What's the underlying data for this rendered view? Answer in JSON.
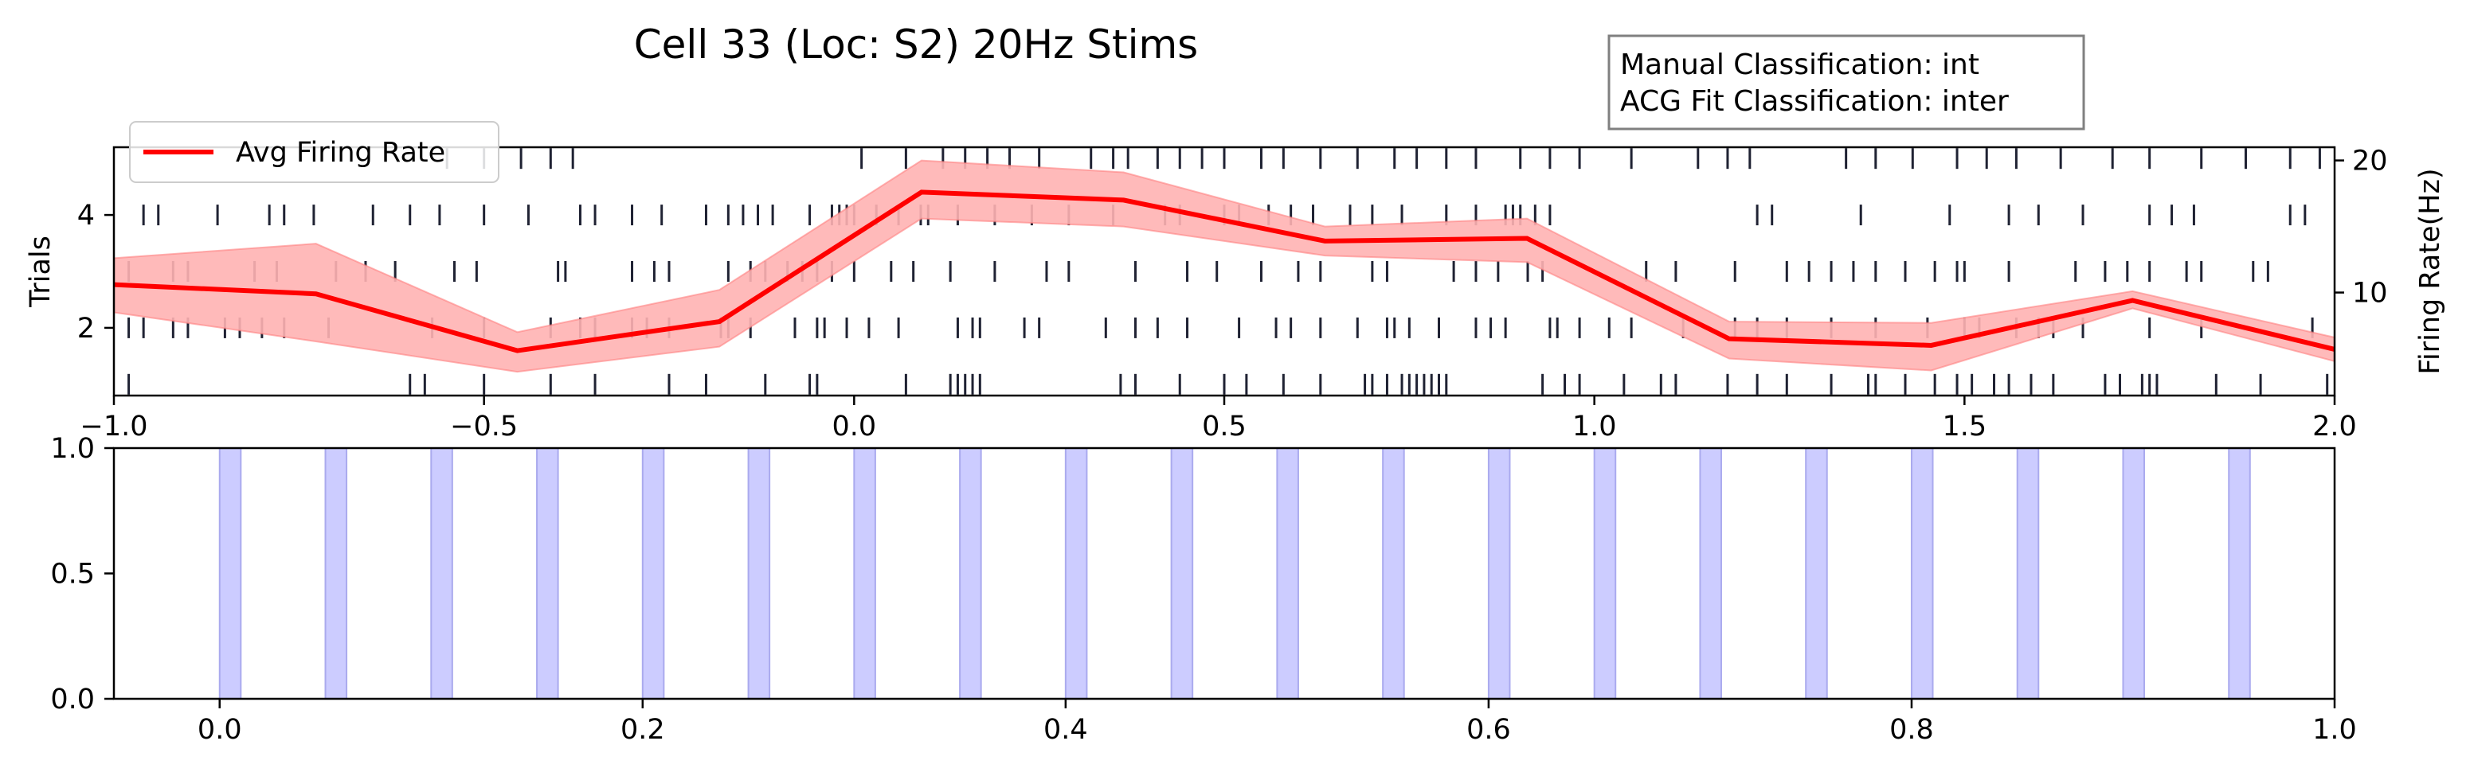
{
  "chart_data": [
    {
      "type": "line",
      "title": "Cell 33 (Loc: S2) 20Hz Stims",
      "ylabel": "Trials",
      "y2label": "Firing Rate(Hz)",
      "xlim": [
        -1.0,
        2.0
      ],
      "ylim": [
        0.8,
        5.2
      ],
      "y2lim": [
        2.2,
        21.0
      ],
      "xticks": [
        "−1.0",
        "−0.5",
        "0.0",
        "0.5",
        "1.0",
        "1.5",
        "2.0"
      ],
      "xtick_values": [
        -1.0,
        -0.5,
        0.0,
        0.5,
        1.0,
        1.5,
        2.0
      ],
      "yticks": [
        "2",
        "4"
      ],
      "ytick_values": [
        2,
        4
      ],
      "y2ticks": [
        "10",
        "20"
      ],
      "y2tick_values": [
        10,
        20
      ],
      "legend": {
        "label": "Avg Firing Rate",
        "placement": "upper-left"
      },
      "annotation": [
        "Manual Classification: int",
        "ACG Fit Classification: inter"
      ],
      "firing_rate": {
        "name": "Avg Firing Rate",
        "color": "#ff0000",
        "x": [
          -1.0,
          -0.727,
          -0.455,
          -0.182,
          0.091,
          0.364,
          0.636,
          0.909,
          1.182,
          1.455,
          1.727,
          2.0
        ],
        "y": [
          10.6,
          9.9,
          5.6,
          7.8,
          17.6,
          17.0,
          13.9,
          14.1,
          6.5,
          6.0,
          9.4,
          5.7
        ],
        "lower": [
          8.5,
          6.3,
          4.0,
          5.9,
          15.6,
          15.0,
          12.8,
          12.3,
          5.0,
          4.1,
          8.8,
          4.8
        ],
        "upper": [
          12.6,
          13.7,
          7.0,
          10.2,
          20.0,
          19.1,
          15.0,
          15.6,
          7.8,
          7.7,
          10.1,
          6.6
        ],
        "band_color": "#ffb3b3"
      },
      "raster": {
        "color": "#1f2233",
        "trials": [
          {
            "trial": 1,
            "times": [
              -0.98,
              -0.6,
              -0.58,
              -0.5,
              -0.41,
              -0.35,
              -0.25,
              -0.2,
              -0.12,
              -0.06,
              -0.05,
              0.07,
              0.13,
              0.14,
              0.15,
              0.16,
              0.17,
              0.36,
              0.38,
              0.44,
              0.5,
              0.53,
              0.58,
              0.63,
              0.69,
              0.7,
              0.72,
              0.74,
              0.75,
              0.76,
              0.77,
              0.78,
              0.79,
              0.8,
              0.93,
              0.96,
              0.98,
              1.04,
              1.09,
              1.11,
              1.18,
              1.22,
              1.26,
              1.32,
              1.37,
              1.38,
              1.42,
              1.46,
              1.49,
              1.51,
              1.54,
              1.56,
              1.59,
              1.62,
              1.69,
              1.71,
              1.74,
              1.75,
              1.76,
              1.84,
              1.9,
              1.99
            ]
          },
          {
            "trial": 2,
            "times": [
              -0.98,
              -0.96,
              -0.92,
              -0.9,
              -0.85,
              -0.83,
              -0.8,
              -0.77,
              -0.71,
              -0.57,
              -0.5,
              -0.41,
              -0.37,
              -0.35,
              -0.3,
              -0.28,
              -0.25,
              -0.18,
              -0.17,
              -0.14,
              -0.08,
              -0.05,
              -0.04,
              -0.01,
              0.02,
              0.06,
              0.14,
              0.16,
              0.17,
              0.23,
              0.25,
              0.34,
              0.38,
              0.41,
              0.45,
              0.52,
              0.57,
              0.59,
              0.63,
              0.68,
              0.72,
              0.73,
              0.75,
              0.79,
              0.84,
              0.86,
              0.88,
              0.94,
              0.95,
              0.98,
              1.02,
              1.05,
              1.12,
              1.19,
              1.22,
              1.26,
              1.32,
              1.38,
              1.45,
              1.5,
              1.52,
              1.57,
              1.6,
              1.62,
              1.66,
              1.75,
              1.82,
              1.97
            ]
          },
          {
            "trial": 3,
            "times": [
              -0.98,
              -0.92,
              -0.9,
              -0.81,
              -0.78,
              -0.7,
              -0.66,
              -0.62,
              -0.54,
              -0.51,
              -0.4,
              -0.39,
              -0.3,
              -0.27,
              -0.25,
              -0.17,
              -0.14,
              -0.12,
              -0.09,
              -0.07,
              -0.05,
              -0.03,
              0.0,
              0.05,
              0.08,
              0.13,
              0.19,
              0.26,
              0.29,
              0.38,
              0.45,
              0.49,
              0.55,
              0.6,
              0.63,
              0.7,
              0.72,
              0.81,
              0.84,
              0.87,
              0.91,
              0.93,
              1.07,
              1.11,
              1.19,
              1.26,
              1.29,
              1.32,
              1.35,
              1.38,
              1.42,
              1.46,
              1.49,
              1.5,
              1.56,
              1.65,
              1.69,
              1.72,
              1.75,
              1.8,
              1.82,
              1.89,
              1.91
            ]
          },
          {
            "trial": 4,
            "times": [
              -0.96,
              -0.94,
              -0.86,
              -0.79,
              -0.77,
              -0.73,
              -0.65,
              -0.6,
              -0.56,
              -0.5,
              -0.44,
              -0.37,
              -0.35,
              -0.3,
              -0.26,
              -0.2,
              -0.17,
              -0.15,
              -0.13,
              -0.11,
              -0.06,
              -0.03,
              -0.02,
              -0.01,
              0.0,
              0.03,
              0.06,
              0.09,
              0.1,
              0.14,
              0.19,
              0.24,
              0.29,
              0.35,
              0.42,
              0.44,
              0.5,
              0.52,
              0.56,
              0.59,
              0.62,
              0.67,
              0.7,
              0.74,
              0.8,
              0.84,
              0.88,
              0.89,
              0.9,
              0.92,
              0.94,
              1.22,
              1.24,
              1.36,
              1.48,
              1.56,
              1.6,
              1.66,
              1.75,
              1.78,
              1.81,
              1.94,
              1.96
            ]
          },
          {
            "trial": 5,
            "times": [
              -0.55,
              -0.5,
              -0.45,
              -0.41,
              -0.38,
              0.01,
              0.07,
              0.12,
              0.15,
              0.18,
              0.21,
              0.25,
              0.32,
              0.35,
              0.37,
              0.41,
              0.44,
              0.47,
              0.5,
              0.55,
              0.58,
              0.63,
              0.68,
              0.73,
              0.76,
              0.8,
              0.84,
              0.9,
              0.94,
              0.98,
              1.05,
              1.14,
              1.18,
              1.21,
              1.34,
              1.38,
              1.43,
              1.49,
              1.53,
              1.57,
              1.63,
              1.7,
              1.75,
              1.82,
              1.88,
              1.94,
              1.98
            ]
          }
        ]
      }
    },
    {
      "type": "bar",
      "description": "Stimulus windows (20Hz)",
      "xlim": [
        -0.05,
        1.0
      ],
      "ylim": [
        0.0,
        1.0
      ],
      "xticks": [
        "0.0",
        "0.2",
        "0.4",
        "0.6",
        "0.8",
        "1.0"
      ],
      "xtick_values": [
        0.0,
        0.2,
        0.4,
        0.6,
        0.8,
        1.0
      ],
      "yticks": [
        "0.0",
        "0.5",
        "1.0"
      ],
      "ytick_values": [
        0.0,
        0.5,
        1.0
      ],
      "stim_color": "#ccccff",
      "stim_edge_color": "#aaaaee",
      "stim_width": 0.01,
      "stim_onsets": [
        0.0,
        0.05,
        0.1,
        0.15,
        0.2,
        0.25,
        0.3,
        0.35,
        0.4,
        0.45,
        0.5,
        0.55,
        0.6,
        0.65,
        0.7,
        0.75,
        0.8,
        0.85,
        0.9,
        0.95
      ]
    }
  ]
}
